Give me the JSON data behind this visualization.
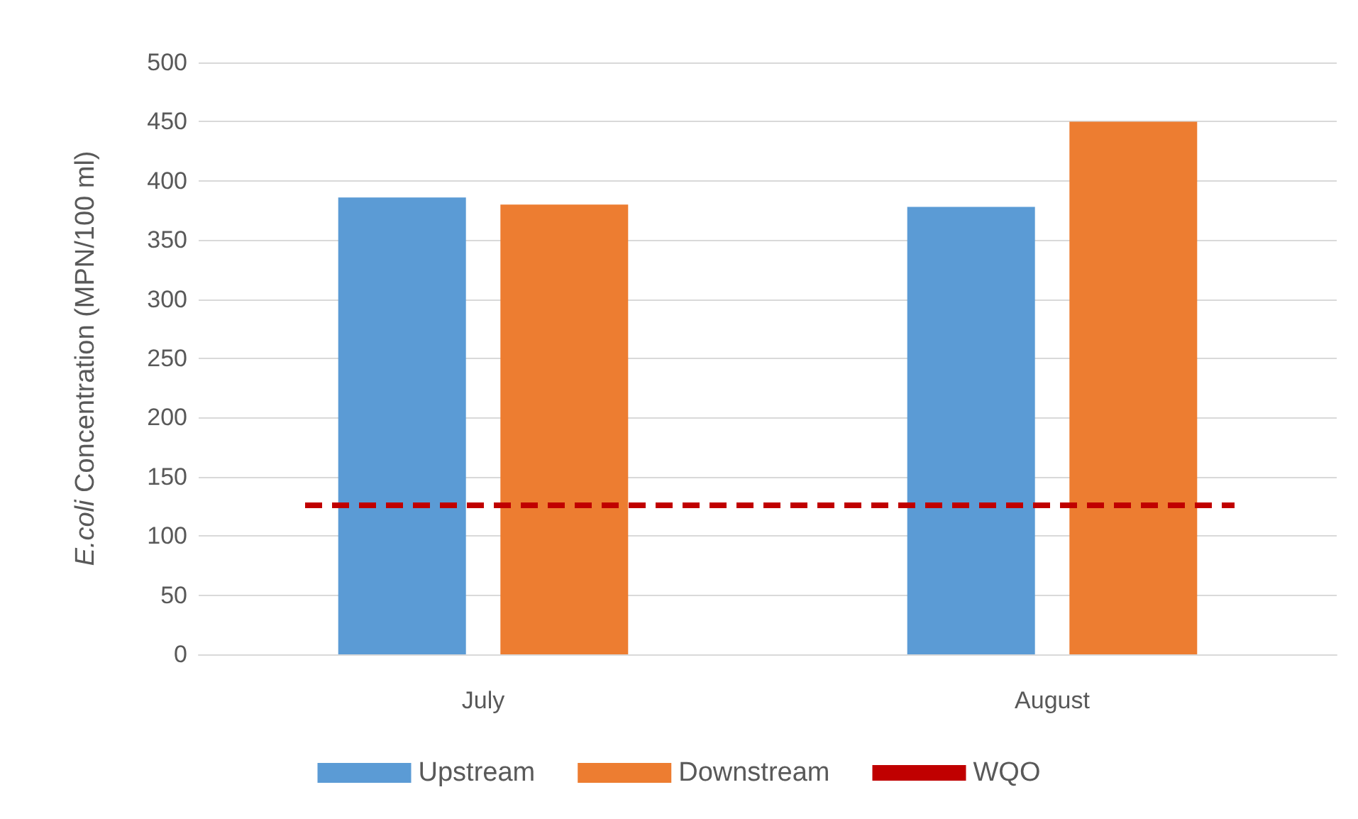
{
  "chart_data": {
    "type": "bar",
    "ylabel": "E.coli Concentration (MPN/100 ml)",
    "categories": [
      "July",
      "August"
    ],
    "series": [
      {
        "name": "Upstream",
        "color": "#5b9bd5",
        "values": [
          386,
          378
        ]
      },
      {
        "name": "Downstream",
        "color": "#ed7d31",
        "values": [
          380,
          450
        ]
      }
    ],
    "ylim": [
      0,
      500
    ],
    "yticks": [
      0,
      50,
      100,
      150,
      200,
      250,
      300,
      350,
      400,
      450,
      500
    ],
    "grid": "y",
    "legend": "bottom",
    "ref_lines": [
      {
        "axis": "y",
        "value": 126,
        "label": "WQO",
        "color": "#c00000",
        "line_style": "dashed"
      }
    ]
  }
}
